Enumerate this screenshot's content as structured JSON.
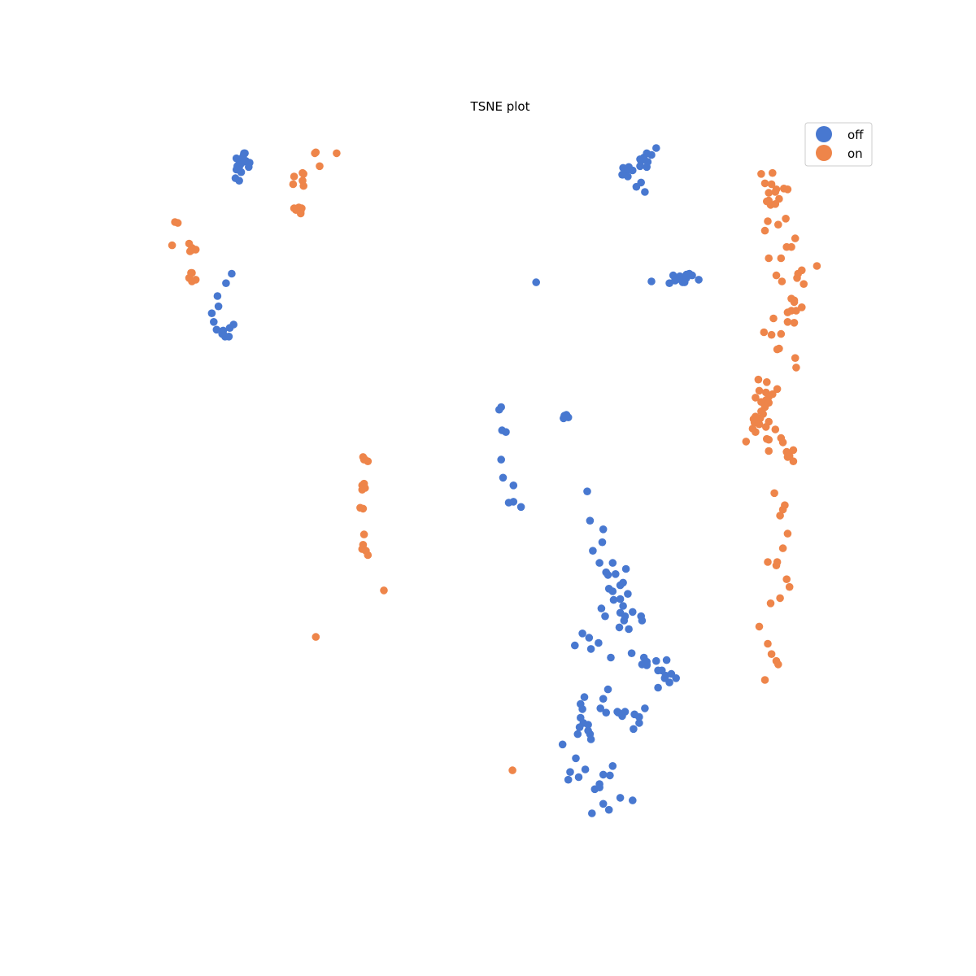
{
  "chart_data": {
    "type": "scatter",
    "title": "TSNE plot",
    "xlabel": "",
    "ylabel": "",
    "axes_visible": false,
    "grid": false,
    "legend_position": "top-right",
    "series": [
      {
        "name": "off",
        "color": "#4878d0",
        "x": [
          -37.1,
          -37.1,
          -36.8,
          -37.4,
          -37.8,
          -37.4,
          -37.6,
          -36.9,
          -37.3,
          -38.0,
          -37.0,
          -36.5,
          -37.9,
          -37.6,
          -37.6,
          -36.6,
          -37.2,
          -37.2,
          -37.7,
          -37.9,
          -3.2,
          -3.0,
          -3.2,
          -2.8,
          -3.0,
          -3.3,
          -38.4,
          -39.0,
          -39.9,
          -39.8,
          -40.5,
          -40.3,
          -40.0,
          -39.3,
          -38.7,
          -39.1,
          -39.3,
          -39.4,
          -38.6,
          -38.2,
          3.0,
          3.6,
          3.3,
          3.5,
          4.0,
          4.9,
          3.5,
          4.9,
          4.4,
          5.3,
          2.9,
          6.5,
          5.5,
          4.8,
          5.5,
          4.8,
          5.2,
          6.0,
          5.6,
          -6.2,
          6.0,
          9.0,
          8.5,
          10.3,
          8.3,
          8.5,
          10.0,
          9.6,
          8.6,
          9.5,
          7.9,
          8.9,
          11.0,
          9.7,
          9.3,
          9.5,
          9.7,
          -9.9,
          -10.1,
          -9.8,
          -9.4,
          -9.9,
          -9.7,
          -8.6,
          -8.6,
          -7.8,
          -9.1,
          -0.8,
          -0.5,
          0.9,
          0.8,
          -0.2,
          0.5,
          2.2,
          1.9,
          3.3,
          1.4,
          1.2,
          3.0,
          1.5,
          1.9,
          2.7,
          3.5,
          2.7,
          3.0,
          2.0,
          0.7,
          3.2,
          1.1,
          2.7,
          3.1,
          2.6,
          4.0,
          5.0,
          4.9,
          3.6,
          -1.3,
          -0.6,
          0.4,
          -2.1,
          -0.4,
          1.7,
          3.9,
          5.2,
          5.5,
          5.5,
          5.5,
          5.0,
          6.5,
          7.6,
          6.7,
          7.5,
          7.1,
          8.1,
          8.6,
          7.9,
          7.4,
          6.7,
          -1.1,
          -1.5,
          -1.3,
          -1.5,
          -1.2,
          -1.6,
          -1.8,
          -0.5,
          -0.7,
          -0.4,
          -0.7,
          0.6,
          0.9,
          1.4,
          2.4,
          1.2,
          2.9,
          3.2,
          2.5,
          5.3,
          4.2,
          4.7,
          4.7,
          4.1,
          -3.4,
          -2.0,
          -2.6,
          -2.8,
          -1.7,
          -1.0,
          0.9,
          1.9,
          1.6,
          0.5,
          0.0,
          0.5,
          2.7,
          0.9,
          4.0,
          1.5,
          -0.3
        ],
        "y": [
          43.9,
          43.8,
          42.9,
          42.7,
          42.4,
          41.7,
          40.7,
          43.0,
          43.1,
          41.0,
          43.9,
          42.8,
          43.3,
          42.6,
          42.3,
          42.3,
          43.4,
          43.5,
          42.5,
          42.0,
          13.4,
          13.5,
          13.3,
          13.2,
          13.4,
          13.1,
          29.9,
          28.8,
          27.3,
          26.1,
          25.3,
          24.3,
          23.4,
          22.9,
          22.6,
          22.6,
          23.3,
          22.9,
          23.6,
          24.0,
          42.2,
          42.3,
          41.6,
          42.1,
          41.9,
          43.0,
          41.2,
          40.5,
          40.0,
          39.4,
          41.4,
          44.5,
          43.9,
          42.4,
          42.3,
          43.2,
          43.4,
          43.7,
          42.9,
          28.9,
          29.0,
          29.6,
          29.1,
          29.7,
          29.7,
          29.2,
          29.9,
          29.5,
          29.2,
          29.3,
          28.8,
          29.3,
          29.2,
          29.4,
          28.9,
          28.9,
          29.8,
          14.4,
          14.1,
          11.7,
          11.5,
          8.3,
          6.2,
          5.3,
          3.4,
          2.8,
          3.3,
          4.6,
          1.2,
          0.2,
          -1.3,
          -2.3,
          -3.7,
          -5.0,
          -3.7,
          -4.4,
          -5.1,
          -4.8,
          -6.0,
          -6.7,
          -7.0,
          -6.3,
          -7.3,
          -7.9,
          -8.7,
          -8.0,
          -9.0,
          -9.9,
          -9.9,
          -9.5,
          -10.4,
          -11.2,
          -9.4,
          -10.4,
          -9.9,
          -11.4,
          -11.9,
          -12.4,
          -13.0,
          -13.3,
          -13.7,
          -14.7,
          -14.2,
          -14.7,
          -15.2,
          -15.5,
          -15.6,
          -15.5,
          -15.1,
          -15.0,
          -16.2,
          -16.8,
          -16.2,
          -16.6,
          -17.1,
          -17.6,
          -17.1,
          -18.2,
          -19.3,
          -20.1,
          -20.7,
          -21.7,
          -22.3,
          -22.8,
          -23.6,
          -23.6,
          -22.5,
          -24.2,
          -23.2,
          -20.6,
          -19.5,
          -18.4,
          -21.0,
          -21.1,
          -21.5,
          -21.0,
          -21.1,
          -20.6,
          -21.3,
          -21.6,
          -22.3,
          -23.0,
          -24.8,
          -26.4,
          -28.0,
          -28.9,
          -28.6,
          -27.7,
          -28.3,
          -27.3,
          -28.4,
          -29.4,
          -30.0,
          -29.8,
          -31.0,
          -31.7,
          -31.3,
          -32.4,
          -32.8
        ]
      },
      {
        "name": "on",
        "color": "#ee854a",
        "x": [
          -29.6,
          -29.5,
          -27.3,
          -29.1,
          -31.8,
          -30.9,
          -30.9,
          -30.8,
          -31.3,
          -31.0,
          -31.3,
          -31.1,
          -31.6,
          -31.1,
          -31.8,
          -30.8,
          -31.9,
          -44.4,
          -44.1,
          -44.7,
          -42.9,
          -42.2,
          -42.6,
          -42.5,
          -42.8,
          -42.6,
          -42.7,
          -42.2,
          -42.9,
          -42.6,
          -24.5,
          -24.3,
          -24.4,
          -24.0,
          -24.6,
          -24.4,
          -24.3,
          -24.6,
          -24.5,
          -24.8,
          -24.6,
          -24.2,
          -24.0,
          -24.4,
          -24.5,
          -24.5,
          -22.3,
          -8.7,
          19.5,
          20.0,
          19.2,
          19.1,
          18.2,
          18.6,
          18.4,
          18.4,
          20.4,
          18.7,
          17.6,
          18.0,
          18.8,
          19.4,
          18.3,
          18.0,
          20.2,
          19.1,
          18.4,
          19.2,
          20.3,
          -29.5,
          20.4,
          21.1,
          20.4,
          21.1,
          20.8,
          22.1,
          21.4,
          21.5,
          21.9,
          23.5,
          21.3,
          21.9,
          20.8,
          21.2,
          19.8,
          19.7,
          21.3,
          21.2,
          19.3,
          19.5,
          19.7,
          18.7,
          17.9,
          18.9,
          20.8,
          21.1,
          17.3,
          18.2,
          19.3,
          18.8,
          17.0,
          17.4,
          18.4,
          18.1,
          17.6,
          18.3,
          18.1,
          17.8,
          17.5,
          18.4,
          17.4,
          18.1,
          16.9,
          18.0,
          16.8,
          18.4,
          18.0,
          17.6,
          17.0,
          16.0,
          18.4,
          19.1,
          17.0,
          16.7,
          18.2,
          19.7,
          19.9,
          18.4,
          20.4,
          21.0,
          20.6,
          20.3,
          21.0,
          20.1,
          19.0,
          19.9,
          19.6,
          19.2,
          18.3,
          19.3,
          20.4,
          19.9,
          20.3,
          20.6,
          19.6,
          18.6,
          17.4,
          18.3,
          18.7,
          19.2,
          19.4,
          18.0
        ],
        "y": [
          43.9,
          44.0,
          43.9,
          42.4,
          41.2,
          41.6,
          40.7,
          40.1,
          37.6,
          37.5,
          37.4,
          37.1,
          37.3,
          36.9,
          37.5,
          41.5,
          40.3,
          35.9,
          35.8,
          33.2,
          33.4,
          32.7,
          32.9,
          32.7,
          32.5,
          30.0,
          30.0,
          29.2,
          29.4,
          29.0,
          8.6,
          8.3,
          8.3,
          8.1,
          5.3,
          5.5,
          5.0,
          4.8,
          2.6,
          2.7,
          -2.1,
          -2.3,
          -2.8,
          -0.4,
          -1.6,
          -2.0,
          -6.9,
          -27.8,
          38.6,
          39.8,
          39.7,
          39.4,
          38.3,
          37.9,
          38.4,
          39.3,
          39.7,
          40.3,
          41.5,
          40.4,
          41.6,
          35.6,
          36.0,
          34.9,
          36.3,
          38.0,
          31.7,
          29.7,
          33.0,
          -12.3,
          24.3,
          24.2,
          25.4,
          26.8,
          27.0,
          28.7,
          29.4,
          29.9,
          30.3,
          30.8,
          25.6,
          26.0,
          33.0,
          34.0,
          29.0,
          31.7,
          19.0,
          20.1,
          21.1,
          21.2,
          22.9,
          22.8,
          23.1,
          24.7,
          25.6,
          26.6,
          17.6,
          17.3,
          16.5,
          15.9,
          15.5,
          16.3,
          15.6,
          15.2,
          15.0,
          14.9,
          16.1,
          13.6,
          13.1,
          12.7,
          12.4,
          12.1,
          12.6,
          14.4,
          13.0,
          14.9,
          14.5,
          13.9,
          11.5,
          10.4,
          10.6,
          11.8,
          13.3,
          11.9,
          10.7,
          10.8,
          10.3,
          9.3,
          8.6,
          8.1,
          8.7,
          9.2,
          9.4,
          3.0,
          4.4,
          2.5,
          1.8,
          -4.0,
          -3.6,
          -3.6,
          -0.3,
          -2.0,
          -5.6,
          -6.5,
          -7.8,
          -8.4,
          -11.1,
          -13.1,
          -14.3,
          -15.1,
          -15.5,
          -17.3
        ]
      }
    ],
    "xlim": [
      -50,
      30
    ],
    "ylim": [
      -38,
      48
    ]
  }
}
